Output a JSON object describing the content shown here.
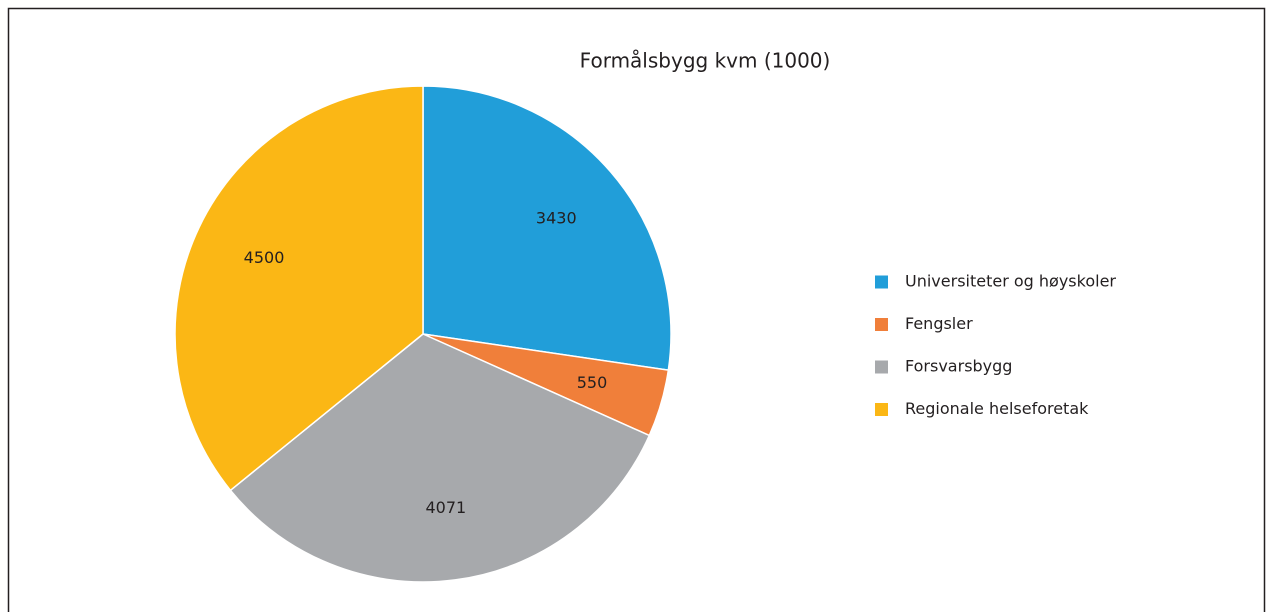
{
  "chart_data": {
    "type": "pie",
    "title": "Formålsbygg kvm (1000)",
    "categories": [
      "Universiteter og høyskoler",
      "Fengsler",
      "Forsvarsbygg",
      "Regionale helseforetak"
    ],
    "values": [
      3430,
      550,
      4071,
      4500
    ],
    "colors": [
      "#219ed9",
      "#f07f3a",
      "#a7a9ac",
      "#fbb715"
    ],
    "legend": "right"
  }
}
